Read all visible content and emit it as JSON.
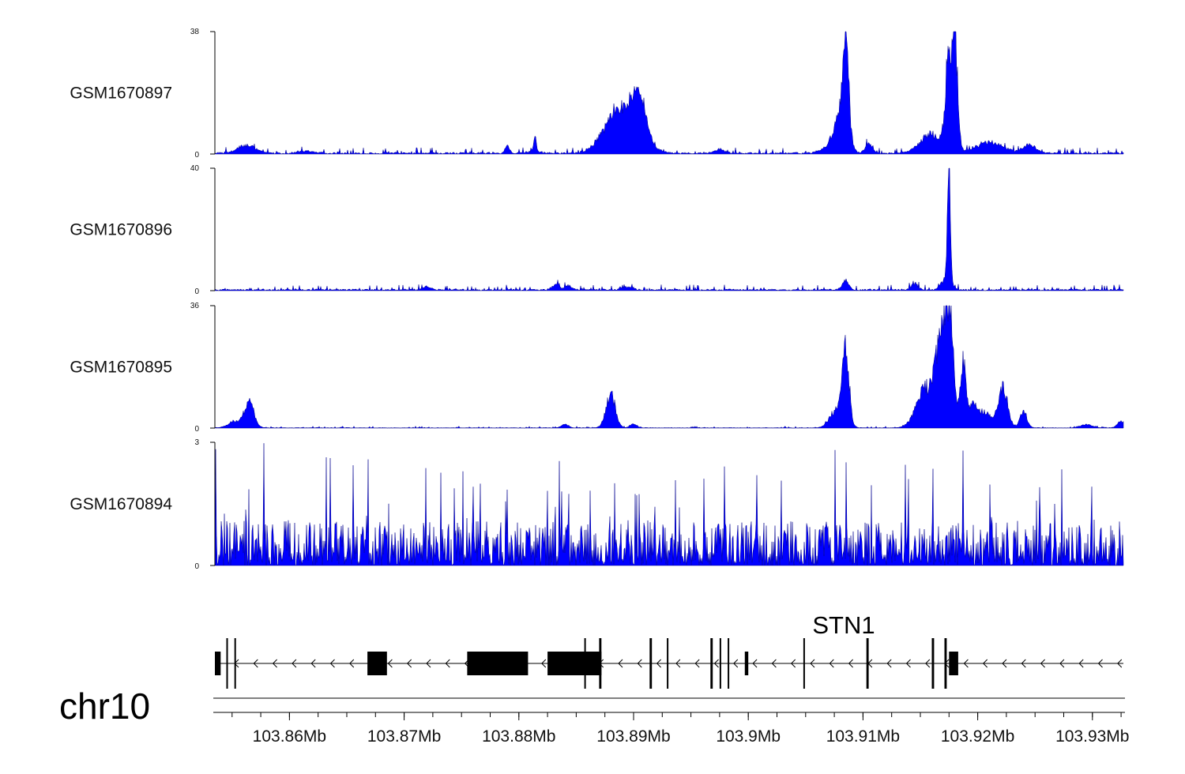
{
  "chart_data": {
    "type": "area",
    "chromosome": "chr10",
    "gene": "STN1",
    "color": "#0000ff",
    "x_range_mb": [
      103.8535,
      103.9327
    ],
    "x_ticks": [
      {
        "value": 103.86,
        "label": "103.86Mb"
      },
      {
        "value": 103.87,
        "label": "103.87Mb"
      },
      {
        "value": 103.88,
        "label": "103.88Mb"
      },
      {
        "value": 103.89,
        "label": "103.89Mb"
      },
      {
        "value": 103.9,
        "label": "103.9Mb"
      },
      {
        "value": 103.91,
        "label": "103.91Mb"
      },
      {
        "value": 103.92,
        "label": "103.92Mb"
      },
      {
        "value": 103.93,
        "label": "103.93Mb"
      }
    ],
    "tracks": [
      {
        "name": "GSM1670897",
        "ylim": [
          0,
          38
        ],
        "y_max_label": "38",
        "y_min_label": "0",
        "noise": 0.9,
        "spiky": false,
        "peaks": [
          {
            "x": 103.8563,
            "h": 2.5,
            "w": 0.0008
          },
          {
            "x": 103.8615,
            "h": 0.7,
            "w": 0.0006
          },
          {
            "x": 103.879,
            "h": 2.0,
            "w": 0.0002
          },
          {
            "x": 103.8813,
            "h": 0.6,
            "w": 0.0006
          },
          {
            "x": 103.8814,
            "h": 5.5,
            "w": 0.0001
          },
          {
            "x": 103.8885,
            "h": 9.0,
            "w": 0.0012
          },
          {
            "x": 103.8905,
            "h": 13.0,
            "w": 0.0006
          },
          {
            "x": 103.8895,
            "h": 6.0,
            "w": 0.0014
          },
          {
            "x": 103.8975,
            "h": 1.2,
            "w": 0.0004
          },
          {
            "x": 103.9065,
            "h": 0.8,
            "w": 0.0004
          },
          {
            "x": 103.9085,
            "h": 29.0,
            "w": 0.00025
          },
          {
            "x": 103.908,
            "h": 12.0,
            "w": 0.0006
          },
          {
            "x": 103.9105,
            "h": 3.0,
            "w": 0.0003
          },
          {
            "x": 103.916,
            "h": 6.0,
            "w": 0.001
          },
          {
            "x": 103.9174,
            "h": 24.0,
            "w": 0.00025
          },
          {
            "x": 103.918,
            "h": 38.0,
            "w": 0.00025
          },
          {
            "x": 103.921,
            "h": 3.5,
            "w": 0.0012
          },
          {
            "x": 103.9245,
            "h": 2.5,
            "w": 0.0006
          }
        ]
      },
      {
        "name": "GSM1670896",
        "ylim": [
          0,
          40
        ],
        "y_max_label": "40",
        "y_min_label": "0",
        "noise": 0.9,
        "spiky": false,
        "peaks": [
          {
            "x": 103.872,
            "h": 1.2,
            "w": 0.0003
          },
          {
            "x": 103.8832,
            "h": 1.8,
            "w": 0.0003
          },
          {
            "x": 103.8843,
            "h": 1.3,
            "w": 0.0003
          },
          {
            "x": 103.8895,
            "h": 0.8,
            "w": 0.0005
          },
          {
            "x": 103.9085,
            "h": 2.8,
            "w": 0.0003
          },
          {
            "x": 103.9145,
            "h": 2.0,
            "w": 0.0003
          },
          {
            "x": 103.9175,
            "h": 40.0,
            "w": 0.00012
          },
          {
            "x": 103.9173,
            "h": 4.5,
            "w": 0.0004
          }
        ]
      },
      {
        "name": "GSM1670895",
        "ylim": [
          0,
          36
        ],
        "y_max_label": "36",
        "y_min_label": "0",
        "noise": 0.25,
        "spiky": false,
        "peaks": [
          {
            "x": 103.8565,
            "h": 8.0,
            "w": 0.0004
          },
          {
            "x": 103.8553,
            "h": 2.0,
            "w": 0.0006
          },
          {
            "x": 103.888,
            "h": 10.0,
            "w": 0.0004
          },
          {
            "x": 103.89,
            "h": 1.2,
            "w": 0.0003
          },
          {
            "x": 103.884,
            "h": 1.0,
            "w": 0.0003
          },
          {
            "x": 103.9085,
            "h": 22.0,
            "w": 0.00028
          },
          {
            "x": 103.9078,
            "h": 6.0,
            "w": 0.0006
          },
          {
            "x": 103.9155,
            "h": 12.0,
            "w": 0.0008
          },
          {
            "x": 103.9167,
            "h": 22.0,
            "w": 0.0004
          },
          {
            "x": 103.9175,
            "h": 36.0,
            "w": 0.00035
          },
          {
            "x": 103.9187,
            "h": 20.0,
            "w": 0.00025
          },
          {
            "x": 103.9195,
            "h": 6.0,
            "w": 0.0003
          },
          {
            "x": 103.9205,
            "h": 5.0,
            "w": 0.0006
          },
          {
            "x": 103.9222,
            "h": 12.0,
            "w": 0.0004
          },
          {
            "x": 103.924,
            "h": 5.0,
            "w": 0.0003
          },
          {
            "x": 103.9295,
            "h": 1.0,
            "w": 0.0005
          },
          {
            "x": 103.9325,
            "h": 2.0,
            "w": 0.0003
          }
        ]
      },
      {
        "name": "GSM1670894",
        "ylim": [
          0,
          3
        ],
        "y_max_label": "3",
        "y_min_label": "0",
        "noise": 0,
        "spiky": true,
        "spike_max": 2.9,
        "peaks": []
      }
    ],
    "gene_model": {
      "strand": "-",
      "line_start_mb": 103.8535,
      "line_end_mb": 103.9327,
      "exons": [
        {
          "start": 103.8535,
          "end": 103.854
        },
        {
          "start": 103.8545,
          "end": 103.8546
        },
        {
          "start": 103.8552,
          "end": 103.8553
        },
        {
          "start": 103.8668,
          "end": 103.8685
        },
        {
          "start": 103.8755,
          "end": 103.8808
        },
        {
          "start": 103.8825,
          "end": 103.8872
        },
        {
          "start": 103.8857,
          "end": 103.8858
        },
        {
          "start": 103.887,
          "end": 103.8872
        },
        {
          "start": 103.8914,
          "end": 103.8916
        },
        {
          "start": 103.8929,
          "end": 103.893
        },
        {
          "start": 103.8967,
          "end": 103.8969
        },
        {
          "start": 103.8975,
          "end": 103.8976
        },
        {
          "start": 103.8982,
          "end": 103.8983
        },
        {
          "start": 103.8997,
          "end": 103.9
        },
        {
          "start": 103.9048,
          "end": 103.9049
        },
        {
          "start": 103.9103,
          "end": 103.9105
        },
        {
          "start": 103.916,
          "end": 103.9162
        },
        {
          "start": 103.9171,
          "end": 103.9173
        },
        {
          "start": 103.9175,
          "end": 103.9183
        }
      ]
    }
  }
}
